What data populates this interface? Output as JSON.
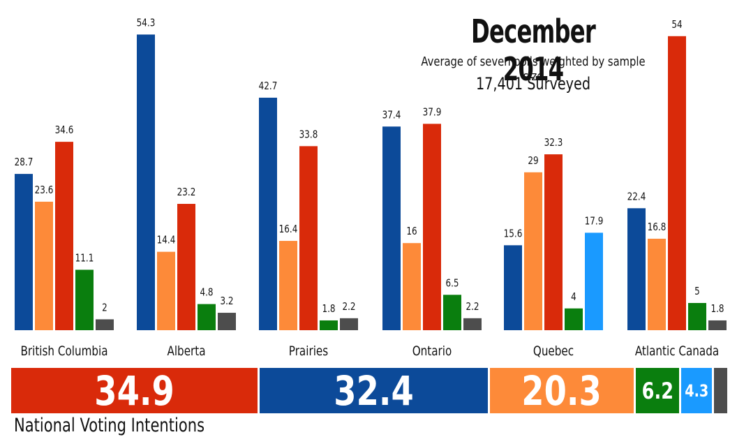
{
  "header": {
    "title": "December 2014",
    "subtitle": "Average of seven polls weighted by sample size",
    "surveyed": "17,401 Surveyed"
  },
  "colors": {
    "blue": "#0c4a99",
    "orange": "#fd8a39",
    "red": "#d92a0a",
    "green": "#0a7e0e",
    "lightblue": "#1a9aff",
    "gray": "#4d4d4d"
  },
  "chart_data": {
    "type": "bar",
    "categories": [
      "British Columbia",
      "Alberta",
      "Prairies",
      "Ontario",
      "Quebec",
      "Atlantic Canada"
    ],
    "ylim": [
      0,
      58
    ],
    "grid": false,
    "series": [
      {
        "color": "#0c4a99",
        "values": [
          28.7,
          54.3,
          42.7,
          37.4,
          15.6,
          22.4
        ]
      },
      {
        "color": "#fd8a39",
        "values": [
          23.6,
          14.4,
          16.4,
          16,
          29,
          16.8
        ]
      },
      {
        "color": "#d92a0a",
        "values": [
          34.6,
          23.2,
          33.8,
          37.9,
          32.3,
          54
        ]
      },
      {
        "color": "#0a7e0e",
        "values": [
          11.1,
          4.8,
          1.8,
          6.5,
          4,
          5
        ]
      },
      {
        "color": "#1a9aff",
        "values": [
          null,
          null,
          null,
          null,
          17.9,
          null
        ]
      },
      {
        "color": "#4d4d4d",
        "values": [
          2,
          3.2,
          2.2,
          2.2,
          null,
          1.8
        ]
      }
    ],
    "data_labels": [
      [
        "28.7",
        "23.6",
        "34.6",
        "11.1",
        "2"
      ],
      [
        "54.3",
        "14.4",
        "23.2",
        "4.8",
        "3.2"
      ],
      [
        "42.7",
        "16.4",
        "33.8",
        "1.8",
        "2.2"
      ],
      [
        "37.4",
        "16",
        "37.9",
        "6.5",
        "2.2"
      ],
      [
        "15.6",
        "29",
        "32.3",
        "4",
        "17.9"
      ],
      [
        "22.4",
        "16.8",
        "54",
        "5",
        "1.8"
      ]
    ]
  },
  "national": {
    "label": "National Voting Intentions",
    "segments": [
      {
        "value": 34.9,
        "text": "34.9",
        "color": "#d92a0a"
      },
      {
        "value": 32.4,
        "text": "32.4",
        "color": "#0c4a99"
      },
      {
        "value": 20.3,
        "text": "20.3",
        "color": "#fd8a39"
      },
      {
        "value": 6.2,
        "text": "6.2",
        "color": "#0a7e0e"
      },
      {
        "value": 4.3,
        "text": "4.3",
        "color": "#1a9aff"
      },
      {
        "value": 1.9,
        "text": "",
        "color": "#4d4d4d"
      }
    ]
  }
}
